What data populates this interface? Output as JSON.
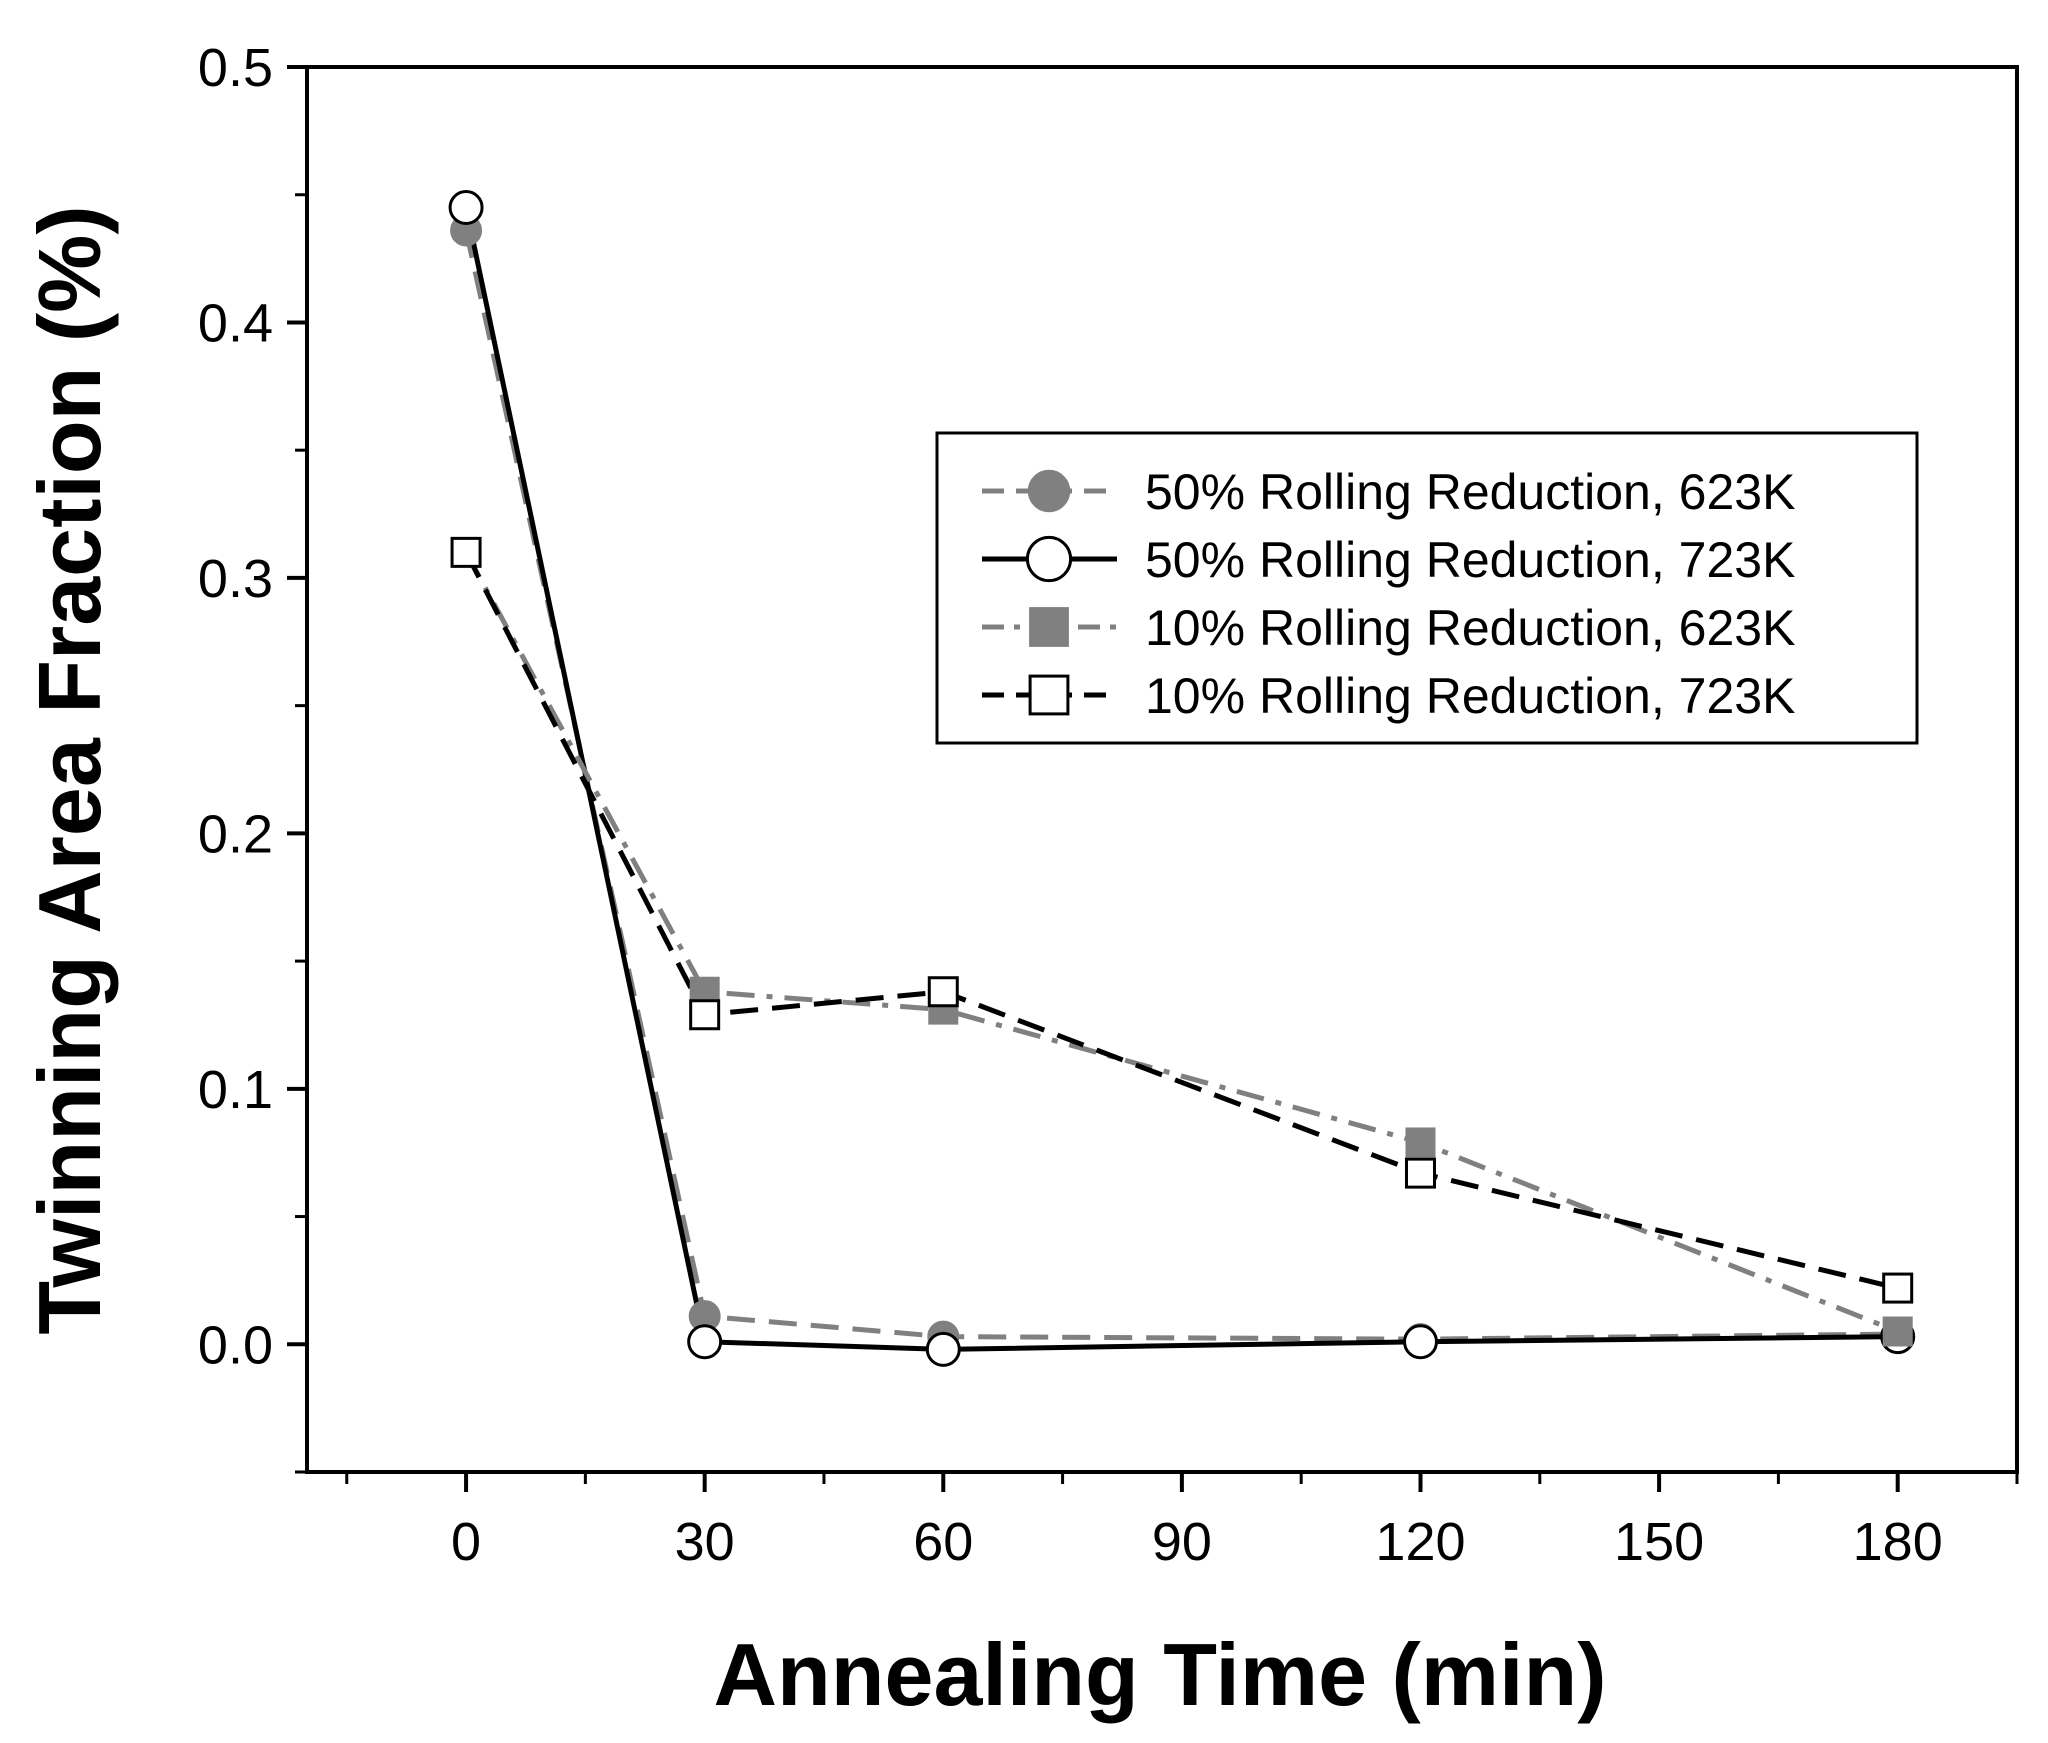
{
  "chart_data": {
    "type": "line",
    "title": "",
    "xlabel": "Annealing Time (min)",
    "ylabel": "Twinning Area Fraction (%)",
    "xlim": [
      -20,
      195
    ],
    "ylim": [
      -0.05,
      0.5
    ],
    "xticks": [
      0,
      30,
      60,
      90,
      120,
      150,
      180
    ],
    "xtick_labels": [
      "0",
      "30",
      "60",
      "90",
      "120",
      "150",
      "180"
    ],
    "yticks": [
      0.0,
      0.1,
      0.2,
      0.3,
      0.4,
      0.5
    ],
    "ytick_labels": [
      "0.0",
      "0.1",
      "0.2",
      "0.3",
      "0.4",
      "0.5"
    ],
    "legend_position": "center-right",
    "series": [
      {
        "name": "50% Rolling Reduction, 623K",
        "x": [
          0,
          30,
          60,
          120,
          180
        ],
        "values": [
          0.436,
          0.011,
          0.003,
          0.002,
          0.004
        ],
        "color": "#808080",
        "marker": "filled-circle",
        "line_style": "dashed"
      },
      {
        "name": "50% Rolling Reduction, 723K",
        "x": [
          0,
          30,
          60,
          120,
          180
        ],
        "values": [
          0.445,
          0.001,
          -0.002,
          0.001,
          0.003
        ],
        "color": "#000000",
        "marker": "open-circle",
        "line_style": "solid"
      },
      {
        "name": "10% Rolling Reduction, 623K",
        "x": [
          0,
          30,
          60,
          120,
          180
        ],
        "values": [
          0.31,
          0.138,
          0.131,
          0.079,
          0.005
        ],
        "color": "#808080",
        "marker": "filled-square",
        "line_style": "dash-dot"
      },
      {
        "name": "10% Rolling Reduction, 723K",
        "x": [
          0,
          30,
          60,
          120,
          180
        ],
        "values": [
          0.31,
          0.129,
          0.138,
          0.067,
          0.022
        ],
        "color": "#000000",
        "marker": "open-square",
        "line_style": "dashed"
      }
    ]
  }
}
